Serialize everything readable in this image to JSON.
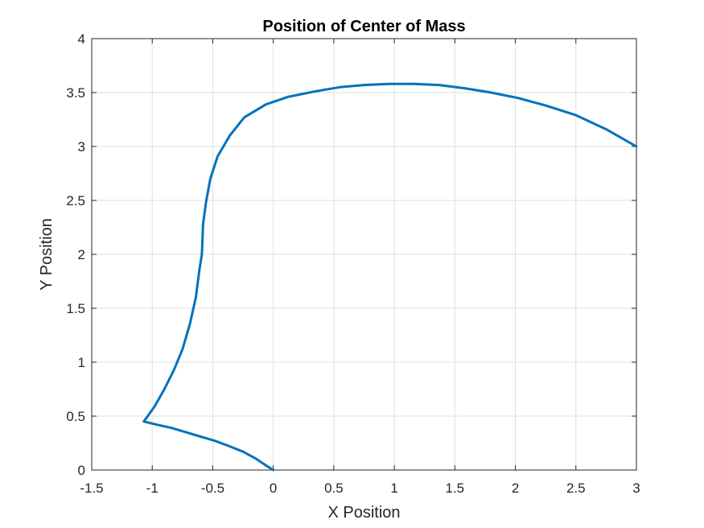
{
  "chart_data": {
    "type": "line",
    "title": "Position of Center of Mass",
    "xlabel": "X Position",
    "ylabel": "Y Position",
    "xlim": [
      -1.5,
      3
    ],
    "ylim": [
      0,
      4
    ],
    "x_ticks": [
      -1.5,
      -1,
      -0.5,
      0,
      0.5,
      1,
      1.5,
      2,
      2.5,
      3
    ],
    "x_tick_labels": [
      "-1.5",
      "-1",
      "-0.5",
      "0",
      "0.5",
      "1",
      "1.5",
      "2",
      "2.5",
      "3"
    ],
    "y_ticks": [
      0,
      0.5,
      1,
      1.5,
      2,
      2.5,
      3,
      3.5,
      4
    ],
    "y_tick_labels": [
      "0",
      "0.5",
      "1",
      "1.5",
      "2",
      "2.5",
      "3",
      "3.5",
      "4"
    ],
    "grid": true,
    "line_color": "#0072BD",
    "series": [
      {
        "x": [
          0,
          -0.07,
          -0.15,
          -0.25,
          -0.36,
          -0.48,
          -0.6,
          -0.72,
          -0.84,
          -0.96,
          -1.07,
          -0.98,
          -0.9,
          -0.82,
          -0.75,
          -0.69,
          -0.64,
          -0.61,
          -0.59,
          -0.585,
          -0.58,
          -0.555,
          -0.52,
          -0.46,
          -0.36,
          -0.24,
          -0.06,
          0.12,
          0.34,
          0.55,
          0.75,
          0.96,
          1.16,
          1.37,
          1.58,
          1.8,
          2.02,
          2.25,
          2.5,
          2.75,
          3.0
        ],
        "y": [
          0,
          0.05,
          0.11,
          0.17,
          0.22,
          0.27,
          0.31,
          0.35,
          0.39,
          0.42,
          0.45,
          0.59,
          0.75,
          0.93,
          1.12,
          1.35,
          1.6,
          1.86,
          2.0,
          2.14,
          2.28,
          2.49,
          2.7,
          2.91,
          3.1,
          3.27,
          3.39,
          3.46,
          3.51,
          3.55,
          3.57,
          3.58,
          3.58,
          3.57,
          3.54,
          3.5,
          3.45,
          3.38,
          3.29,
          3.16,
          3.0
        ]
      }
    ]
  }
}
